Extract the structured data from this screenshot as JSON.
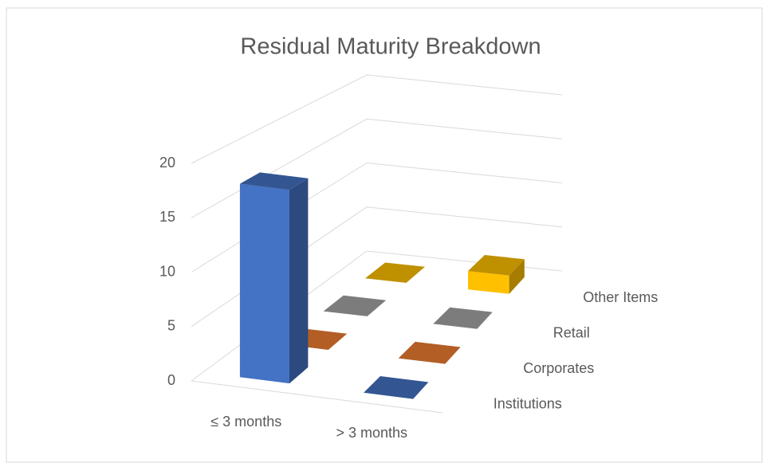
{
  "chart_data": {
    "type": "bar3d",
    "title": "Residual Maturity Breakdown",
    "categories": [
      "≤ 3 months",
      "> 3 months"
    ],
    "series": [
      {
        "name": "Institutions",
        "color": "#4472c4",
        "values": [
          18,
          0
        ]
      },
      {
        "name": "Corporates",
        "color": "#ed7d31",
        "values": [
          0,
          0
        ]
      },
      {
        "name": "Retail",
        "color": "#a5a5a5",
        "values": [
          0,
          0
        ]
      },
      {
        "name": "Other Items",
        "color": "#ffc000",
        "values": [
          0,
          2
        ]
      }
    ],
    "ylim": [
      0,
      20
    ],
    "yticks": [
      0,
      5,
      10,
      15,
      20
    ],
    "grid": true
  }
}
